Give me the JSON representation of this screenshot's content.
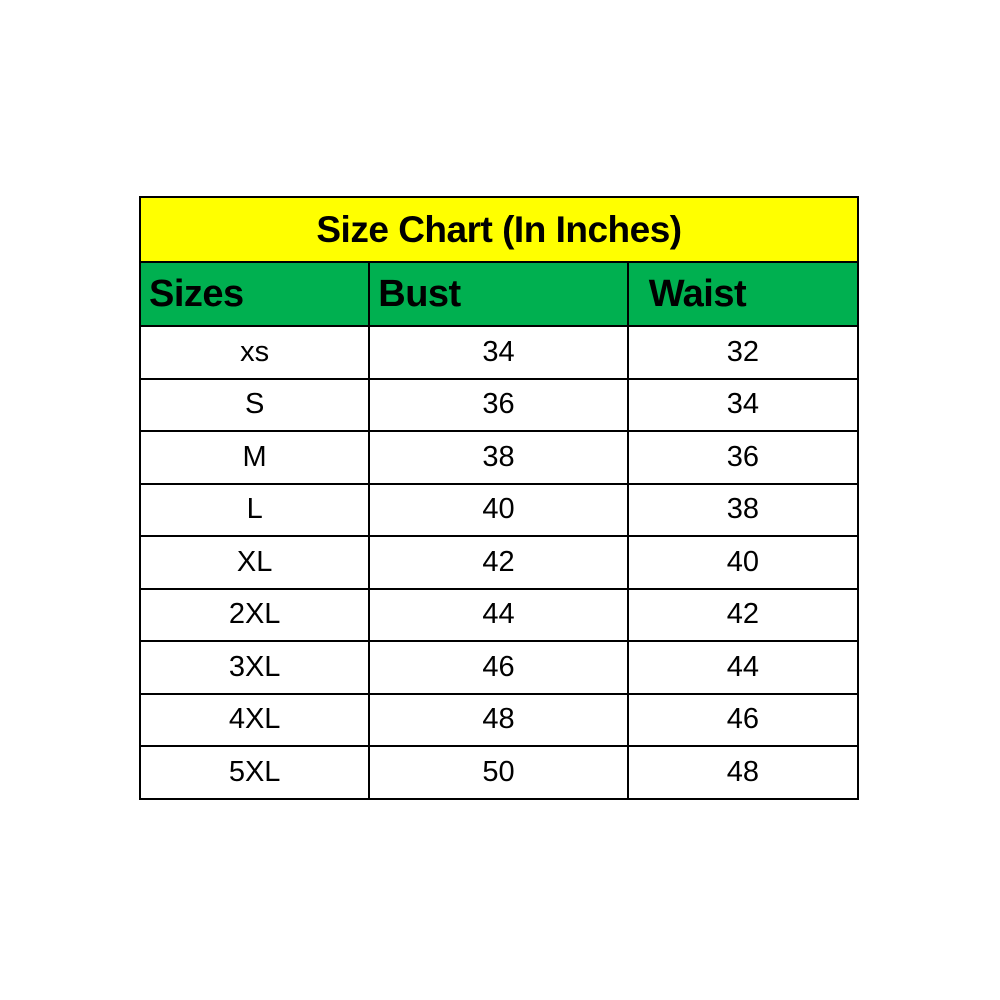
{
  "chart_data": {
    "type": "table",
    "title": "Size Chart (In Inches)",
    "columns": [
      "Sizes",
      "Bust",
      "Waist"
    ],
    "rows": [
      [
        "xs",
        "34",
        "32"
      ],
      [
        "S",
        "36",
        "34"
      ],
      [
        "M",
        "38",
        "36"
      ],
      [
        "L",
        "40",
        "38"
      ],
      [
        "XL",
        "42",
        "40"
      ],
      [
        "2XL",
        "44",
        "42"
      ],
      [
        "3XL",
        "46",
        "44"
      ],
      [
        "4XL",
        "48",
        "46"
      ],
      [
        "5XL",
        "50",
        "48"
      ]
    ],
    "colors": {
      "title_bg": "#ffff00",
      "header_bg": "#00b050"
    }
  }
}
